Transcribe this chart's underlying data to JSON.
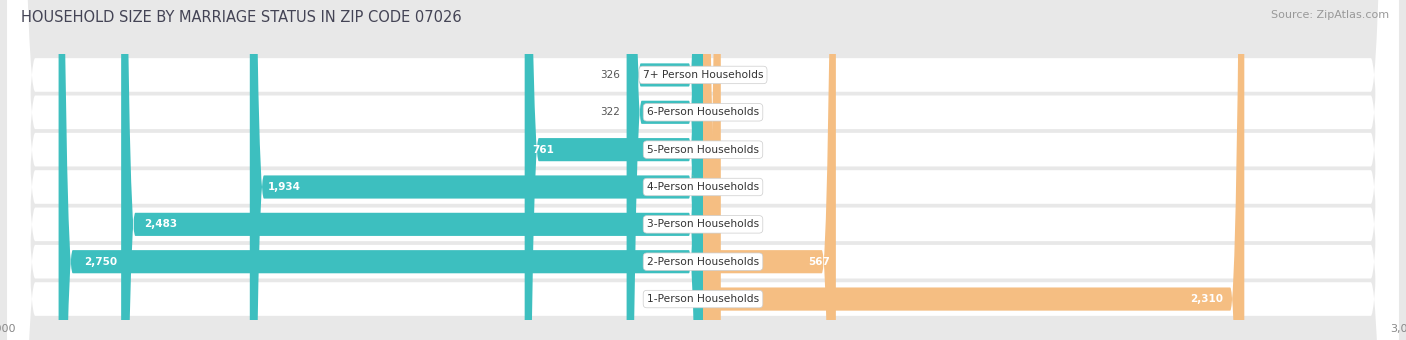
{
  "title": "HOUSEHOLD SIZE BY MARRIAGE STATUS IN ZIP CODE 07026",
  "source": "Source: ZipAtlas.com",
  "categories": [
    "7+ Person Households",
    "6-Person Households",
    "5-Person Households",
    "4-Person Households",
    "3-Person Households",
    "2-Person Households",
    "1-Person Households"
  ],
  "family": [
    326,
    322,
    761,
    1934,
    2483,
    2750,
    0
  ],
  "nonfamily": [
    0,
    0,
    0,
    15,
    76,
    567,
    2310
  ],
  "family_color": "#3DBFBF",
  "nonfamily_color": "#F5BE82",
  "bg_color": "#e8e8e8",
  "row_color": "#f5f5f5",
  "xlim": 3000,
  "title_fontsize": 10.5,
  "source_fontsize": 8,
  "label_fontsize": 7.5,
  "tick_fontsize": 8
}
